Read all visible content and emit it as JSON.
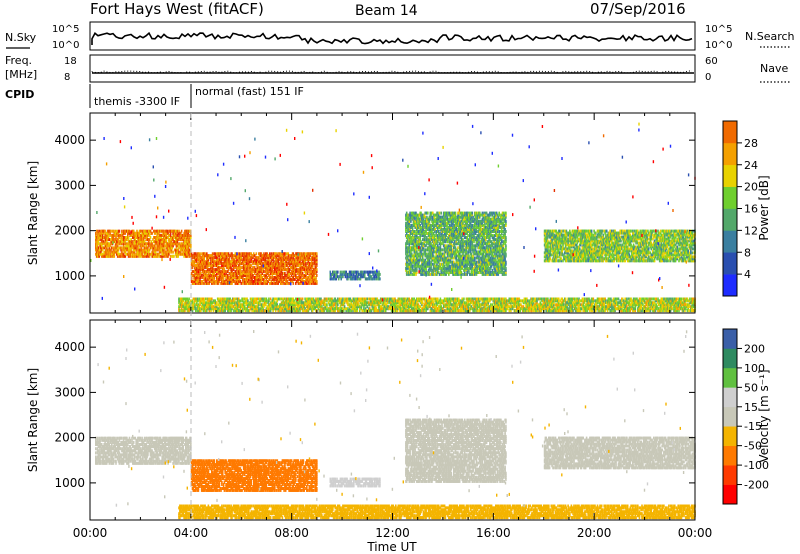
{
  "header": {
    "title": "Fort Hays West (fitACF)",
    "beam": "Beam 14",
    "date": "07/Sep/2016"
  },
  "strips": {
    "nsky_label": "N.Sky",
    "nsky_ticks": [
      "10^5",
      "10^0"
    ],
    "nsearch_label": "N.Search",
    "nsearch_ticks": [
      "10^5",
      "10^0"
    ],
    "freq_label_line1": "Freq.",
    "freq_label_line2": "[MHz]",
    "freq_ticks": [
      "18",
      "8"
    ],
    "nave_label": "Nave",
    "nave_ticks": [
      "60",
      "0"
    ],
    "cpid_label": "CPID",
    "cpid_entries": [
      {
        "start_hour": 0,
        "text": "themis -3300 IF"
      },
      {
        "start_hour": 4,
        "text": "normal (fast) 151 IF"
      }
    ]
  },
  "colors": {
    "power_scale": [
      "#1e2cff",
      "#2a4fb0",
      "#3a7fa0",
      "#53a86a",
      "#6fcf2e",
      "#e8d200",
      "#f4a000",
      "#f06a00",
      "#e53000",
      "#ff0000"
    ],
    "velocity_scale": [
      "#ff0000",
      "#ff3a00",
      "#ff7a00",
      "#f4b400",
      "#c8c8b8",
      "#cfcfcf",
      "#60c040",
      "#2e8a60",
      "#3a5fa8",
      "#1f2fd0"
    ]
  },
  "chart_data": [
    {
      "type": "heatmap",
      "name": "power-panel",
      "title": "",
      "xlabel": "",
      "ylabel": "Slant Range [km]",
      "x_unit": "hours UT",
      "xlim": [
        0,
        24
      ],
      "ylim": [
        180,
        4600
      ],
      "yticks": [
        1000,
        2000,
        3000,
        4000
      ],
      "colorbar": {
        "label": "Power [dB]",
        "ticks": [
          4,
          8,
          12,
          16,
          20,
          24,
          28
        ],
        "range": [
          0,
          32
        ]
      },
      "regions": [
        {
          "t0": 0.2,
          "t1": 4.0,
          "r0": 1400,
          "r1": 2000,
          "value": 22
        },
        {
          "t0": 4.0,
          "t1": 9.0,
          "r0": 800,
          "r1": 1500,
          "value": 24
        },
        {
          "t0": 9.5,
          "t1": 11.5,
          "r0": 900,
          "r1": 1100,
          "value": 8
        },
        {
          "t0": 12.5,
          "t1": 16.5,
          "r0": 1000,
          "r1": 2400,
          "value": 12
        },
        {
          "t0": 18.0,
          "t1": 24.0,
          "r0": 1300,
          "r1": 2000,
          "value": 14
        },
        {
          "t0": 3.5,
          "t1": 24.0,
          "r0": 200,
          "r1": 500,
          "value": 16
        }
      ]
    },
    {
      "type": "heatmap",
      "name": "velocity-panel",
      "title": "",
      "xlabel": "Time UT",
      "ylabel": "Slant Range [km]",
      "x_unit": "hours UT",
      "xlim": [
        0,
        24
      ],
      "ylim": [
        180,
        4600
      ],
      "yticks": [
        1000,
        2000,
        3000,
        4000
      ],
      "xtick_labels": [
        "00:00",
        "04:00",
        "08:00",
        "12:00",
        "16:00",
        "20:00",
        "00:00"
      ],
      "xticks": [
        0,
        4,
        8,
        12,
        16,
        20,
        24
      ],
      "colorbar": {
        "label": "Velocity [m s⁻¹]",
        "ticks": [
          -200,
          -100,
          -50,
          -15,
          15,
          50,
          100,
          200
        ]
      },
      "regions": [
        {
          "t0": 0.2,
          "t1": 4.0,
          "r0": 1400,
          "r1": 2000,
          "value": 0
        },
        {
          "t0": 4.0,
          "t1": 9.0,
          "r0": 800,
          "r1": 1500,
          "value": -60
        },
        {
          "t0": 9.5,
          "t1": 11.5,
          "r0": 900,
          "r1": 1100,
          "value": 30
        },
        {
          "t0": 12.5,
          "t1": 16.5,
          "r0": 1000,
          "r1": 2400,
          "value": 0
        },
        {
          "t0": 18.0,
          "t1": 24.0,
          "r0": 1300,
          "r1": 2000,
          "value": 0
        },
        {
          "t0": 3.5,
          "t1": 24.0,
          "r0": 200,
          "r1": 500,
          "value": -40
        }
      ]
    }
  ]
}
